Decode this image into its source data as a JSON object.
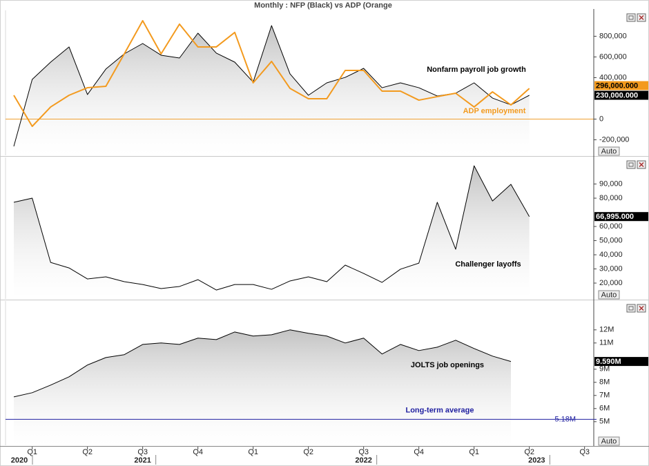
{
  "title": "Monthly : NFP (Black) vs ADP (Orange",
  "chart_data": [
    {
      "type": "line",
      "ylim": [
        -350000,
        1050000
      ],
      "yticks": [
        {
          "value": -200000,
          "label": "-200,000"
        },
        0,
        {
          "value": 400000,
          "label": "400,000"
        },
        {
          "value": 600000,
          "label": "600,000"
        },
        {
          "value": 800000,
          "label": "800,000"
        }
      ],
      "zero_line_color": "#f0a030",
      "button_label": "Auto",
      "xlim": [
        -0.45,
        31.5
      ],
      "x": [
        0,
        1,
        2,
        3,
        4,
        5,
        6,
        7,
        8,
        9,
        10,
        11,
        12,
        13,
        14,
        15,
        16,
        17,
        18,
        19,
        20,
        21,
        22,
        23,
        24,
        25,
        26,
        27,
        28
      ],
      "series": [
        {
          "name": "Nonfarm payroll job growth",
          "color": "#000000",
          "fill": true,
          "values": [
            -263000,
            383000,
            550000,
            697000,
            237000,
            483000,
            630000,
            730000,
            617000,
            590000,
            830000,
            637000,
            550000,
            357000,
            903000,
            437000,
            230000,
            350000,
            403000,
            490000,
            303000,
            350000,
            303000,
            223000,
            250000,
            350000,
            203000,
            137000,
            230000
          ],
          "value_labels": [
            null,
            null,
            null,
            null,
            null,
            null,
            null,
            null,
            null,
            null,
            null,
            null,
            null,
            null,
            null,
            null,
            null,
            null,
            null,
            null,
            null,
            null,
            null,
            null,
            null,
            null,
            null,
            null,
            "230,000.000"
          ]
        },
        {
          "name": "ADP employment",
          "color": "#f39a1e",
          "fill": false,
          "values": [
            230000,
            -70000,
            117000,
            230000,
            303000,
            317000,
            630000,
            950000,
            630000,
            917000,
            697000,
            697000,
            837000,
            350000,
            557000,
            297000,
            197000,
            197000,
            470000,
            470000,
            270000,
            270000,
            183000,
            217000,
            250000,
            117000,
            263000,
            137000,
            296000
          ],
          "value_labels": [
            null,
            null,
            null,
            null,
            null,
            null,
            null,
            null,
            null,
            null,
            null,
            null,
            null,
            null,
            null,
            null,
            null,
            null,
            null,
            null,
            null,
            null,
            null,
            null,
            null,
            null,
            null,
            null,
            "296,000.000"
          ]
        }
      ]
    },
    {
      "type": "line",
      "ylim": [
        8800,
        108800
      ],
      "yticks": [
        {
          "value": 20000,
          "label": "20,000"
        },
        {
          "value": 30000,
          "label": "30,000"
        },
        {
          "value": 40000,
          "label": "40,000"
        },
        {
          "value": 50000,
          "label": "50,000"
        },
        {
          "value": 60000,
          "label": "60,000"
        },
        {
          "value": 80000,
          "label": "80,000"
        },
        {
          "value": 90000,
          "label": "90,000"
        }
      ],
      "button_label": "Auto",
      "xlim": [
        -0.45,
        31.5
      ],
      "x": [
        0,
        1,
        2,
        3,
        4,
        5,
        6,
        7,
        8,
        9,
        10,
        11,
        12,
        13,
        14,
        15,
        16,
        17,
        18,
        19,
        20,
        21,
        22,
        23,
        24,
        25,
        26,
        27,
        28
      ],
      "series": [
        {
          "name": "Challenger layoffs",
          "color": "#000000",
          "fill": true,
          "values": [
            77100,
            80000,
            34600,
            30700,
            22900,
            24400,
            21000,
            19000,
            16100,
            17600,
            22400,
            15100,
            19000,
            19000,
            15600,
            21500,
            24400,
            21000,
            32700,
            26800,
            20500,
            29800,
            34100,
            77100,
            43900,
            102900,
            78000,
            89800,
            66995
          ],
          "value_labels": [
            null,
            null,
            null,
            null,
            null,
            null,
            null,
            null,
            null,
            null,
            null,
            null,
            null,
            null,
            null,
            null,
            null,
            null,
            null,
            null,
            null,
            null,
            null,
            null,
            null,
            null,
            null,
            null,
            "66,995.000"
          ]
        }
      ]
    },
    {
      "type": "line",
      "ylim": [
        3200000,
        14200000
      ],
      "yticks": [
        {
          "value": 5000000,
          "label": "5M"
        },
        {
          "value": 6000000,
          "label": "6M"
        },
        {
          "value": 7000000,
          "label": "7M"
        },
        {
          "value": 8000000,
          "label": "8M"
        },
        {
          "value": 9000000,
          "label": "9M"
        },
        {
          "value": 11000000,
          "label": "11M"
        },
        {
          "value": 12000000,
          "label": "12M"
        }
      ],
      "button_label": "Auto",
      "xlim": [
        -0.45,
        31.5
      ],
      "x": [
        0,
        1,
        2,
        3,
        4,
        5,
        6,
        7,
        8,
        9,
        10,
        11,
        12,
        13,
        14,
        15,
        16,
        17,
        18,
        19,
        20,
        21,
        22,
        23,
        24,
        25,
        26,
        27
      ],
      "xticks": [
        {
          "value": 1,
          "label": "Q1"
        },
        {
          "value": 4,
          "label": "Q2"
        },
        {
          "value": 7,
          "label": "Q3"
        },
        {
          "value": 10,
          "label": "Q4"
        },
        {
          "value": 13,
          "label": "Q1"
        },
        {
          "value": 16,
          "label": "Q2"
        },
        {
          "value": 19,
          "label": "Q3"
        },
        {
          "value": 22,
          "label": "Q4"
        },
        {
          "value": 25,
          "label": "Q1"
        },
        {
          "value": 28,
          "label": "Q2"
        },
        {
          "value": 31,
          "label": "Q3"
        }
      ],
      "year_ticks": [
        {
          "value": 0.3,
          "label": "2020"
        },
        {
          "value": 7,
          "label": "2021"
        },
        {
          "value": 19,
          "label": "2022"
        },
        {
          "value": 28.4,
          "label": "2023"
        }
      ],
      "reference_line": {
        "name": "Long-term average",
        "value": 5180000,
        "label": "5.18M",
        "color": "#1f1fa0"
      },
      "series": [
        {
          "name": "JOLTS job openings",
          "color": "#000000",
          "fill": true,
          "values": [
            6890000,
            7210000,
            7790000,
            8420000,
            9320000,
            9890000,
            10110000,
            10890000,
            11000000,
            10890000,
            11370000,
            11260000,
            11840000,
            11530000,
            11630000,
            12000000,
            11740000,
            11530000,
            11000000,
            11370000,
            10160000,
            10890000,
            10420000,
            10680000,
            11210000,
            10580000,
            10000000,
            9590000
          ],
          "value_labels": [
            null,
            null,
            null,
            null,
            null,
            null,
            null,
            null,
            null,
            null,
            null,
            null,
            null,
            null,
            null,
            null,
            null,
            null,
            null,
            null,
            null,
            null,
            null,
            null,
            null,
            null,
            null,
            "9.590M"
          ]
        }
      ]
    }
  ]
}
